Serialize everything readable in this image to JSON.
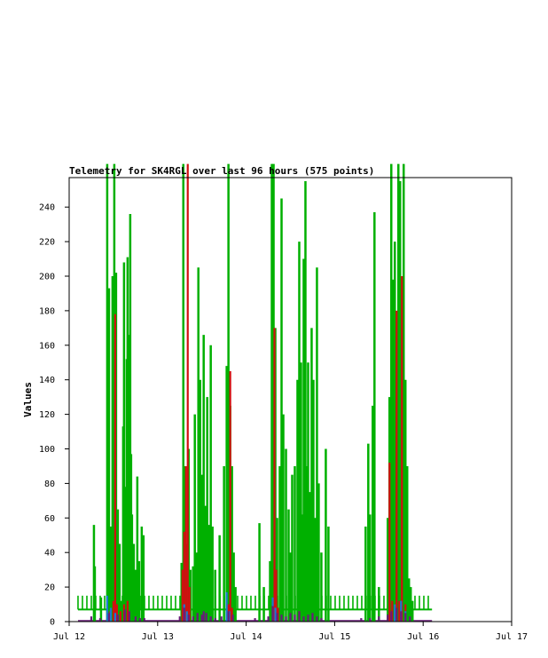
{
  "chart_data": {
    "type": "bar",
    "title": "Telemetry for SK4RGL over last 96 hours (575 points)",
    "xlabel": "",
    "ylabel": "Values",
    "ylim": [
      0,
      255
    ],
    "xlim_days": [
      12,
      17
    ],
    "y_ticks": [
      0,
      20,
      40,
      60,
      80,
      100,
      120,
      140,
      160,
      180,
      200,
      220,
      240
    ],
    "x_ticks": [
      {
        "day": 12,
        "label": "Jul 12"
      },
      {
        "day": 13,
        "label": "Jul 13"
      },
      {
        "day": 14,
        "label": "Jul 14"
      },
      {
        "day": 15,
        "label": "Jul 15"
      },
      {
        "day": 16,
        "label": "Jul 16"
      },
      {
        "day": 17,
        "label": "Jul 17"
      }
    ],
    "baseline_bands": [
      {
        "series": "green",
        "from_day": 12.1,
        "to_day": 16.1,
        "low": 7,
        "high": 15,
        "color": "#00b000"
      },
      {
        "series": "purple",
        "from_day": 12.1,
        "to_day": 16.1,
        "low": 0,
        "high": 1,
        "color": "#6a1b7a"
      }
    ],
    "series": [
      {
        "color": "#00b000",
        "points": [
          [
            12.28,
            56
          ],
          [
            12.29,
            32
          ],
          [
            12.36,
            14
          ],
          [
            12.43,
            265
          ],
          [
            12.45,
            193
          ],
          [
            12.47,
            55
          ],
          [
            12.49,
            200
          ],
          [
            12.5,
            105
          ],
          [
            12.51,
            265
          ],
          [
            12.53,
            202
          ],
          [
            12.55,
            65
          ],
          [
            12.57,
            45
          ],
          [
            12.59,
            12
          ],
          [
            12.61,
            113
          ],
          [
            12.62,
            208
          ],
          [
            12.63,
            78
          ],
          [
            12.65,
            152
          ],
          [
            12.66,
            211
          ],
          [
            12.67,
            55
          ],
          [
            12.68,
            166
          ],
          [
            12.69,
            236
          ],
          [
            12.7,
            97
          ],
          [
            12.71,
            62
          ],
          [
            12.73,
            45
          ],
          [
            12.75,
            30
          ],
          [
            12.77,
            84
          ],
          [
            12.79,
            35
          ],
          [
            12.82,
            55
          ],
          [
            12.84,
            50
          ],
          [
            13.27,
            34
          ],
          [
            13.29,
            265
          ],
          [
            13.31,
            90
          ],
          [
            13.33,
            45
          ],
          [
            13.35,
            100
          ],
          [
            13.37,
            30
          ],
          [
            13.4,
            32
          ],
          [
            13.42,
            120
          ],
          [
            13.44,
            40
          ],
          [
            13.46,
            205
          ],
          [
            13.48,
            140
          ],
          [
            13.5,
            85
          ],
          [
            13.52,
            166
          ],
          [
            13.54,
            67
          ],
          [
            13.56,
            130
          ],
          [
            13.58,
            56
          ],
          [
            13.6,
            160
          ],
          [
            13.62,
            55
          ],
          [
            13.65,
            30
          ],
          [
            13.7,
            50
          ],
          [
            13.75,
            90
          ],
          [
            13.78,
            148
          ],
          [
            13.8,
            265
          ],
          [
            13.82,
            125
          ],
          [
            13.84,
            90
          ],
          [
            13.86,
            40
          ],
          [
            13.88,
            20
          ],
          [
            14.15,
            57
          ],
          [
            14.2,
            20
          ],
          [
            14.27,
            35
          ],
          [
            14.29,
            265
          ],
          [
            14.31,
            265
          ],
          [
            14.33,
            170
          ],
          [
            14.35,
            60
          ],
          [
            14.38,
            90
          ],
          [
            14.4,
            245
          ],
          [
            14.42,
            120
          ],
          [
            14.45,
            100
          ],
          [
            14.48,
            65
          ],
          [
            14.5,
            40
          ],
          [
            14.52,
            85
          ],
          [
            14.55,
            90
          ],
          [
            14.58,
            140
          ],
          [
            14.6,
            220
          ],
          [
            14.62,
            150
          ],
          [
            14.63,
            62
          ],
          [
            14.65,
            210
          ],
          [
            14.67,
            255
          ],
          [
            14.68,
            90
          ],
          [
            14.7,
            150
          ],
          [
            14.72,
            75
          ],
          [
            14.74,
            170
          ],
          [
            14.76,
            140
          ],
          [
            14.78,
            60
          ],
          [
            14.8,
            205
          ],
          [
            14.82,
            80
          ],
          [
            14.85,
            40
          ],
          [
            14.9,
            100
          ],
          [
            14.93,
            55
          ],
          [
            15.35,
            55
          ],
          [
            15.38,
            103
          ],
          [
            15.4,
            62
          ],
          [
            15.43,
            125
          ],
          [
            15.45,
            237
          ],
          [
            15.5,
            20
          ],
          [
            15.6,
            60
          ],
          [
            15.62,
            130
          ],
          [
            15.64,
            265
          ],
          [
            15.66,
            198
          ],
          [
            15.68,
            220
          ],
          [
            15.7,
            127
          ],
          [
            15.72,
            265
          ],
          [
            15.74,
            255
          ],
          [
            15.76,
            145
          ],
          [
            15.78,
            265
          ],
          [
            15.8,
            140
          ],
          [
            15.82,
            90
          ],
          [
            15.84,
            25
          ],
          [
            15.86,
            20
          ],
          [
            15.88,
            12
          ]
        ]
      },
      {
        "color": "#d01010",
        "points": [
          [
            12.46,
            6
          ],
          [
            12.5,
            12
          ],
          [
            12.52,
            178
          ],
          [
            12.54,
            10
          ],
          [
            12.58,
            6
          ],
          [
            12.62,
            10
          ],
          [
            12.66,
            12
          ],
          [
            13.28,
            30
          ],
          [
            13.3,
            52
          ],
          [
            13.32,
            90
          ],
          [
            13.34,
            265
          ],
          [
            13.36,
            20
          ],
          [
            13.8,
            10
          ],
          [
            13.82,
            145
          ],
          [
            13.84,
            8
          ],
          [
            14.3,
            12
          ],
          [
            14.32,
            170
          ],
          [
            14.34,
            30
          ],
          [
            14.36,
            8
          ],
          [
            14.6,
            6
          ],
          [
            15.62,
            92
          ],
          [
            15.65,
            12
          ],
          [
            15.7,
            180
          ],
          [
            15.73,
            12
          ],
          [
            15.76,
            200
          ],
          [
            15.8,
            10
          ]
        ]
      },
      {
        "color": "#1a7ad0",
        "points": [
          [
            12.43,
            15
          ],
          [
            12.47,
            8
          ],
          [
            12.52,
            5
          ],
          [
            13.3,
            10
          ],
          [
            13.33,
            6
          ],
          [
            13.78,
            17
          ],
          [
            13.81,
            6
          ],
          [
            14.3,
            14
          ],
          [
            14.33,
            8
          ],
          [
            15.68,
            10
          ],
          [
            15.75,
            12
          ],
          [
            15.8,
            6
          ]
        ]
      },
      {
        "color": "#6a1b7a",
        "points": [
          [
            12.25,
            3
          ],
          [
            12.35,
            2
          ],
          [
            12.45,
            5
          ],
          [
            12.55,
            4
          ],
          [
            12.63,
            7
          ],
          [
            12.68,
            6
          ],
          [
            12.75,
            3
          ],
          [
            12.8,
            2
          ],
          [
            12.85,
            2
          ],
          [
            13.25,
            3
          ],
          [
            13.3,
            8
          ],
          [
            13.35,
            4
          ],
          [
            13.4,
            3
          ],
          [
            13.45,
            5
          ],
          [
            13.5,
            4
          ],
          [
            13.52,
            6
          ],
          [
            13.55,
            5
          ],
          [
            13.6,
            3
          ],
          [
            13.65,
            2
          ],
          [
            13.72,
            3
          ],
          [
            13.8,
            6
          ],
          [
            13.85,
            4
          ],
          [
            14.1,
            2
          ],
          [
            14.25,
            3
          ],
          [
            14.3,
            9
          ],
          [
            14.35,
            5
          ],
          [
            14.4,
            4
          ],
          [
            14.45,
            3
          ],
          [
            14.5,
            5
          ],
          [
            14.55,
            4
          ],
          [
            14.6,
            6
          ],
          [
            14.65,
            3
          ],
          [
            14.7,
            4
          ],
          [
            14.75,
            5
          ],
          [
            14.8,
            3
          ],
          [
            14.85,
            2
          ],
          [
            15.3,
            2
          ],
          [
            15.4,
            2
          ],
          [
            15.5,
            3
          ],
          [
            15.6,
            4
          ],
          [
            15.64,
            6
          ],
          [
            15.7,
            8
          ],
          [
            15.75,
            6
          ],
          [
            15.8,
            5
          ],
          [
            15.85,
            3
          ]
        ]
      }
    ]
  }
}
